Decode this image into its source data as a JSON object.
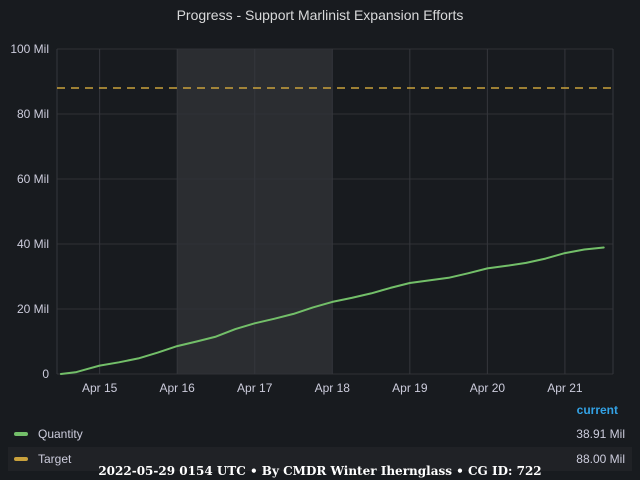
{
  "chart_data": {
    "type": "line",
    "title": "Progress - Support Marlinist Expansion Efforts",
    "y_ticks": [
      "0",
      "20 Mil",
      "40 Mil",
      "60 Mil",
      "80 Mil",
      "100 Mil"
    ],
    "y_tick_values": [
      0,
      20,
      40,
      60,
      80,
      100
    ],
    "ylim": [
      0,
      100
    ],
    "x_ticks": [
      "Apr 15",
      "Apr 16",
      "Apr 17",
      "Apr 18",
      "Apr 19",
      "Apr 20",
      "Apr 21"
    ],
    "x_tick_days": [
      15,
      16,
      17,
      18,
      19,
      20,
      21
    ],
    "xlim": [
      14.45,
      21.62
    ],
    "highlight_region": [
      16,
      18
    ],
    "grid": true,
    "series": [
      {
        "name": "Quantity",
        "color": "#73bf69",
        "style": "solid",
        "x": [
          14.5,
          14.7,
          14.85,
          15.0,
          15.25,
          15.5,
          15.75,
          16.0,
          16.25,
          16.5,
          16.75,
          17.0,
          17.25,
          17.5,
          17.75,
          18.0,
          18.25,
          18.5,
          18.75,
          19.0,
          19.25,
          19.5,
          19.75,
          20.0,
          20.25,
          20.5,
          20.75,
          21.0,
          21.25,
          21.5
        ],
        "values": [
          0.0,
          0.6,
          1.6,
          2.6,
          3.6,
          4.8,
          6.6,
          8.6,
          10.0,
          11.5,
          13.8,
          15.6,
          17.0,
          18.5,
          20.5,
          22.2,
          23.4,
          24.8,
          26.5,
          28.0,
          28.8,
          29.6,
          31.0,
          32.5,
          33.3,
          34.2,
          35.5,
          37.2,
          38.3,
          38.91
        ]
      },
      {
        "name": "Target",
        "color": "#fade2a",
        "style": "dashed",
        "x": [
          14.45,
          21.62
        ],
        "values": [
          88,
          88
        ]
      }
    ],
    "legend": {
      "placement": "bottom",
      "value_header": "current",
      "entries": [
        {
          "name": "Quantity",
          "color": "#73bf69",
          "value": "38.91 Mil"
        },
        {
          "name": "Target",
          "color": "#c9a13c",
          "value": "88.00 Mil"
        }
      ]
    }
  },
  "footer": "2022-05-29 0154 UTC • By CMDR Winter Iherngla ss • CG ID: 722"
}
